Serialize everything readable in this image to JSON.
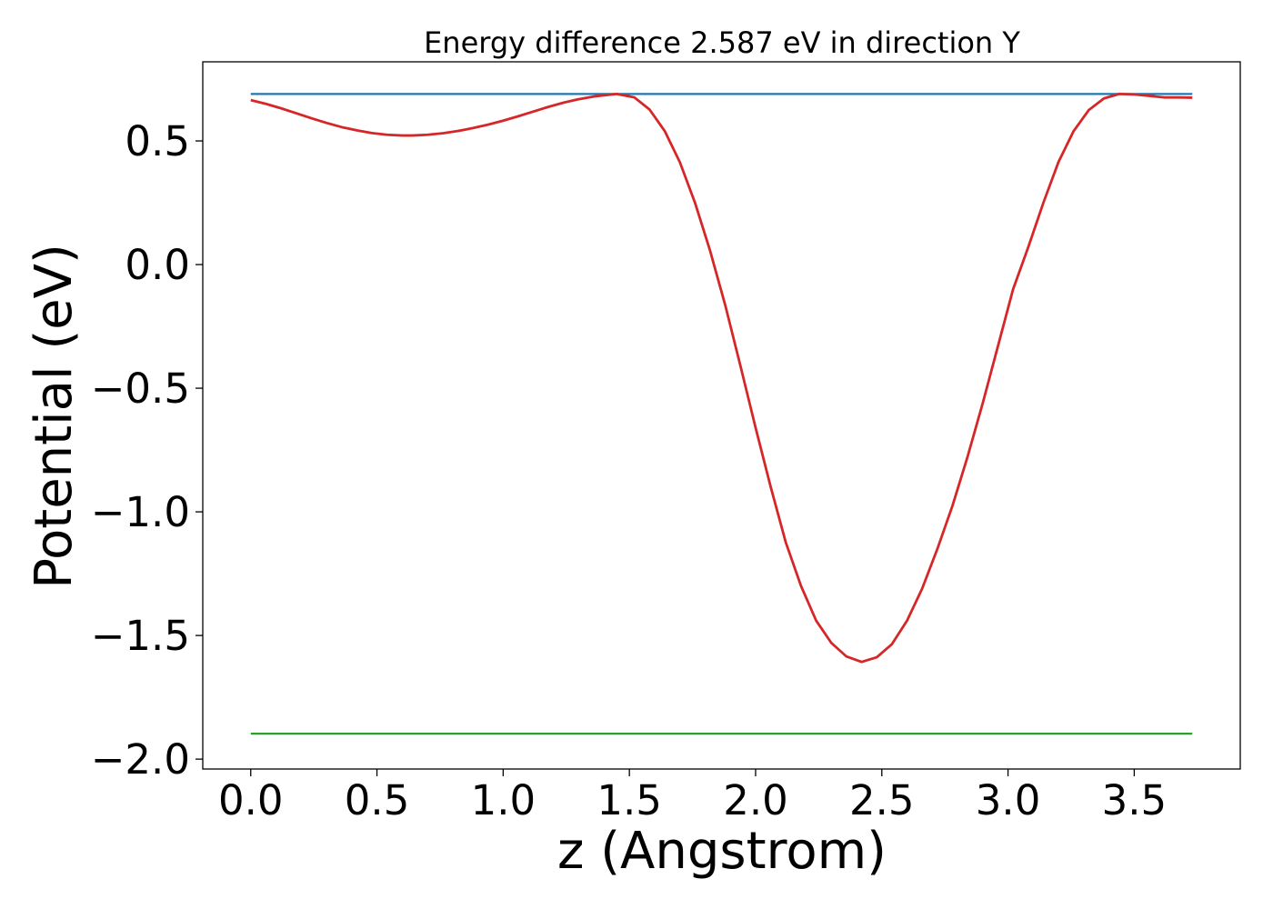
{
  "chart_data": {
    "type": "line",
    "title": "Energy difference 2.587 eV in direction Y",
    "xlabel": "z (Angstrom)",
    "ylabel": "Potential (eV)",
    "xlim": [
      -0.19,
      3.92
    ],
    "ylim": [
      -2.04,
      0.82
    ],
    "x_ticks": [
      0.0,
      0.5,
      1.0,
      1.5,
      2.0,
      2.5,
      3.0,
      3.5
    ],
    "x_tick_labels": [
      "0.0",
      "0.5",
      "1.0",
      "1.5",
      "2.0",
      "2.5",
      "3.0",
      "3.5"
    ],
    "y_ticks": [
      0.5,
      0.0,
      -0.5,
      -1.0,
      -1.5,
      -2.0
    ],
    "y_tick_labels": [
      "0.5",
      "0.0",
      "−0.5",
      "−1.0",
      "−1.5",
      "−2.0"
    ],
    "grid": false,
    "series": [
      {
        "color": "#1f77b4",
        "x": [
          0.0,
          3.73
        ],
        "y": [
          0.69,
          0.69
        ]
      },
      {
        "color": "#2ca02c",
        "x": [
          0.0,
          3.73
        ],
        "y": [
          -1.897,
          -1.897
        ]
      },
      {
        "color": "#d62728",
        "x": [
          0.0,
          0.06,
          0.12,
          0.18,
          0.24,
          0.3,
          0.36,
          0.42,
          0.48,
          0.54,
          0.6,
          0.64,
          0.7,
          0.76,
          0.82,
          0.88,
          0.94,
          1.0,
          1.06,
          1.12,
          1.18,
          1.24,
          1.3,
          1.36,
          1.42,
          1.45,
          1.52,
          1.58,
          1.64,
          1.7,
          1.76,
          1.82,
          1.88,
          1.94,
          2.0,
          2.06,
          2.12,
          2.18,
          2.24,
          2.3,
          2.36,
          2.42,
          2.48,
          2.54,
          2.6,
          2.66,
          2.72,
          2.78,
          2.84,
          2.9,
          2.96,
          3.02,
          3.08,
          3.14,
          3.2,
          3.26,
          3.32,
          3.38,
          3.44,
          3.5,
          3.56,
          3.62,
          3.68,
          3.73
        ],
        "y": [
          0.665,
          0.65,
          0.632,
          0.612,
          0.592,
          0.573,
          0.556,
          0.543,
          0.532,
          0.525,
          0.522,
          0.522,
          0.525,
          0.531,
          0.54,
          0.552,
          0.566,
          0.582,
          0.6,
          0.619,
          0.638,
          0.655,
          0.669,
          0.68,
          0.687,
          0.69,
          0.676,
          0.627,
          0.54,
          0.414,
          0.25,
          0.055,
          -0.165,
          -0.41,
          -0.66,
          -0.9,
          -1.125,
          -1.3,
          -1.44,
          -1.53,
          -1.585,
          -1.607,
          -1.588,
          -1.535,
          -1.44,
          -1.31,
          -1.15,
          -0.975,
          -0.776,
          -0.56,
          -0.33,
          -0.1,
          0.07,
          0.25,
          0.415,
          0.54,
          0.625,
          0.672,
          0.69,
          0.688,
          0.682,
          0.676,
          0.676,
          0.675
        ]
      }
    ]
  }
}
